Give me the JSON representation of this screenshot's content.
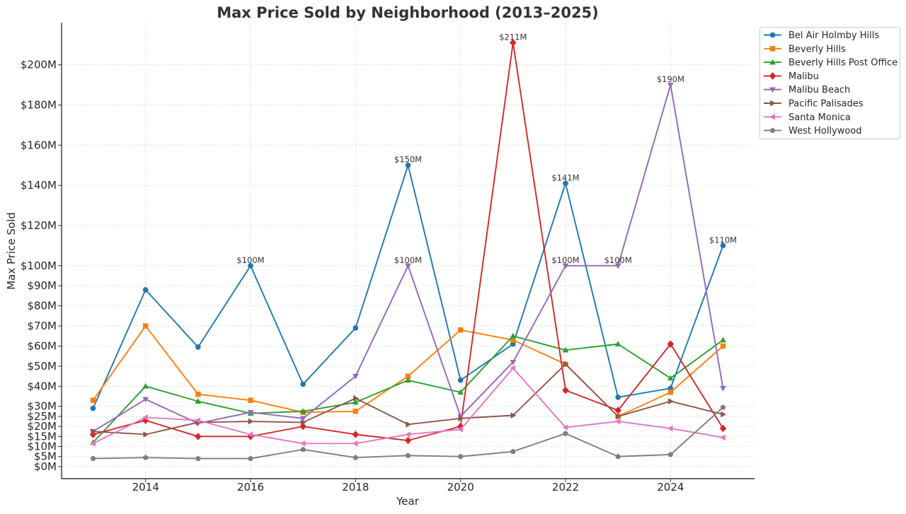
{
  "chart_data": {
    "type": "line",
    "title": "Max Price Sold by Neighborhood (2013–2025)",
    "xlabel": "Year",
    "ylabel": "Max Price Sold",
    "x": [
      2013,
      2014,
      2015,
      2016,
      2017,
      2018,
      2019,
      2020,
      2021,
      2022,
      2023,
      2024,
      2025
    ],
    "xlim": [
      2012.4,
      2025.6
    ],
    "ylim": [
      -6,
      221
    ],
    "x_ticks": [
      2014,
      2016,
      2018,
      2020,
      2022,
      2024
    ],
    "x_tick_labels": [
      "2014",
      "2016",
      "2018",
      "2020",
      "2022",
      "2024"
    ],
    "y_ticks": [
      0,
      5,
      10,
      15,
      20,
      25,
      30,
      40,
      50,
      60,
      70,
      80,
      90,
      100,
      120,
      140,
      160,
      180,
      200
    ],
    "y_tick_labels": [
      "$0M",
      "$5M",
      "$10M",
      "$15M",
      "$20M",
      "$25M",
      "$30M",
      "$40M",
      "$50M",
      "$60M",
      "$70M",
      "$80M",
      "$90M",
      "$100M",
      "$120M",
      "$140M",
      "$160M",
      "$180M",
      "$200M"
    ],
    "grid": true,
    "legend_position": "outside-top-right",
    "units": "millions USD",
    "series": [
      {
        "name": "Bel Air Holmby Hills",
        "color": "#1f77b4",
        "marker": "circle",
        "values": [
          29,
          88,
          59.5,
          100,
          41,
          69,
          150,
          43,
          61,
          141,
          34.5,
          39,
          110
        ]
      },
      {
        "name": "Beverly Hills",
        "color": "#ff7f0e",
        "marker": "square",
        "values": [
          33,
          70,
          36,
          33,
          27,
          27.5,
          45,
          68,
          63,
          51,
          25,
          37,
          60
        ]
      },
      {
        "name": "Beverly Hills Post Office",
        "color": "#2ca02c",
        "marker": "triangle-up",
        "values": [
          12,
          40,
          32.5,
          26.5,
          27.5,
          32,
          43,
          37,
          65,
          58,
          61,
          44,
          63
        ]
      },
      {
        "name": "Malibu",
        "color": "#d62728",
        "marker": "diamond",
        "values": [
          16,
          23,
          15,
          15,
          20,
          16,
          13,
          20,
          211,
          38,
          28,
          61,
          19
        ]
      },
      {
        "name": "Malibu Beach",
        "color": "#9467bd",
        "marker": "triangle-down",
        "values": [
          17.5,
          33.5,
          21.5,
          27,
          24,
          45,
          100,
          25,
          52,
          100,
          100,
          190,
          39
        ]
      },
      {
        "name": "Pacific Palisades",
        "color": "#8c564b",
        "marker": "triangle-right",
        "values": [
          17.5,
          16,
          22,
          22.5,
          22,
          34,
          21,
          24,
          25.5,
          51,
          25,
          32.5,
          26
        ]
      },
      {
        "name": "Santa Monica",
        "color": "#e377c2",
        "marker": "triangle-left",
        "values": [
          11.5,
          24.5,
          23,
          16,
          11.5,
          11.5,
          16,
          18.5,
          49,
          19.5,
          22.5,
          19,
          14.5
        ]
      },
      {
        "name": "West Hollywood",
        "color": "#7f7f7f",
        "marker": "pentagon",
        "values": [
          4,
          4.5,
          4,
          4,
          8.5,
          4.5,
          5.5,
          5,
          7.5,
          16.5,
          5,
          6,
          29.5
        ]
      }
    ],
    "annotations": [
      {
        "text": "$100M",
        "x": 2016,
        "y": 100,
        "series": "Bel Air Holmby Hills"
      },
      {
        "text": "$150M",
        "x": 2019,
        "y": 150,
        "series": "Bel Air Holmby Hills"
      },
      {
        "text": "$100M",
        "x": 2019,
        "y": 100,
        "series": "Malibu Beach"
      },
      {
        "text": "$211M",
        "x": 2021,
        "y": 211,
        "series": "Malibu"
      },
      {
        "text": "$141M",
        "x": 2022,
        "y": 141,
        "series": "Bel Air Holmby Hills"
      },
      {
        "text": "$100M",
        "x": 2022,
        "y": 100,
        "series": "Malibu Beach"
      },
      {
        "text": "$100M",
        "x": 2023,
        "y": 100,
        "series": "Malibu Beach"
      },
      {
        "text": "$190M",
        "x": 2024,
        "y": 190,
        "series": "Malibu Beach"
      },
      {
        "text": "$110M",
        "x": 2025,
        "y": 110,
        "series": "Bel Air Holmby Hills"
      }
    ]
  }
}
